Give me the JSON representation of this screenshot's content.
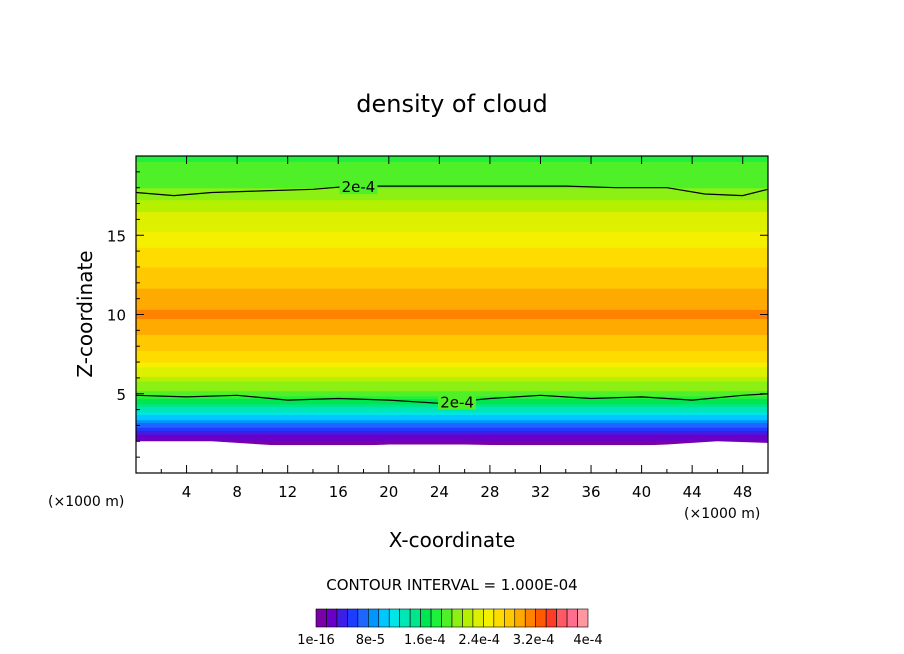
{
  "chart_data": {
    "type": "heatmap",
    "title": "density of cloud",
    "xlabel": "X-coordinate",
    "ylabel": "Z-coordinate",
    "x_unit_left": "(×1000 m)",
    "x_unit_right": "(×1000 m)",
    "xlim": [
      0,
      50
    ],
    "ylim": [
      0,
      20
    ],
    "xticks": [
      4,
      8,
      12,
      16,
      20,
      24,
      28,
      32,
      36,
      40,
      44,
      48
    ],
    "yticks": [
      5,
      10,
      15
    ],
    "grid": false,
    "contour_interval_text": "CONTOUR INTERVAL = 1.000E-04",
    "contour_labels": [
      "2e-4",
      "2e-4"
    ],
    "contour_2e4_upper_z": [
      [
        0,
        17.7
      ],
      [
        3,
        17.5
      ],
      [
        6,
        17.7
      ],
      [
        10,
        17.8
      ],
      [
        14,
        17.9
      ],
      [
        17,
        18.1
      ],
      [
        22,
        18.1
      ],
      [
        26,
        18.1
      ],
      [
        30,
        18.1
      ],
      [
        34,
        18.1
      ],
      [
        38,
        18.0
      ],
      [
        42,
        18.0
      ],
      [
        45,
        17.6
      ],
      [
        48,
        17.5
      ],
      [
        50,
        17.9
      ]
    ],
    "contour_2e4_lower_z": [
      [
        0,
        4.9
      ],
      [
        4,
        4.8
      ],
      [
        8,
        4.9
      ],
      [
        12,
        4.6
      ],
      [
        16,
        4.7
      ],
      [
        20,
        4.6
      ],
      [
        24,
        4.4
      ],
      [
        28,
        4.7
      ],
      [
        32,
        4.9
      ],
      [
        36,
        4.7
      ],
      [
        40,
        4.8
      ],
      [
        44,
        4.6
      ],
      [
        48,
        4.9
      ],
      [
        50,
        5.0
      ]
    ],
    "cloud_base_z": [
      [
        0,
        2.0
      ],
      [
        6,
        2.0
      ],
      [
        10,
        1.8
      ],
      [
        14,
        1.6
      ],
      [
        20,
        1.8
      ],
      [
        26,
        1.8
      ],
      [
        32,
        1.7
      ],
      [
        36,
        1.6
      ],
      [
        42,
        1.8
      ],
      [
        46,
        2.0
      ],
      [
        50,
        1.9
      ]
    ],
    "density_levels": [
      {
        "z": 1.8,
        "value": 1e-16
      },
      {
        "z": 2.6,
        "value": 4e-05
      },
      {
        "z": 3.2,
        "value": 8e-05
      },
      {
        "z": 4.2,
        "value": 0.00014
      },
      {
        "z": 5.2,
        "value": 0.0002
      },
      {
        "z": 7.0,
        "value": 0.00026
      },
      {
        "z": 8.5,
        "value": 0.00029
      },
      {
        "z": 10.0,
        "value": 0.00031
      },
      {
        "z": 12.0,
        "value": 0.00029
      },
      {
        "z": 13.5,
        "value": 0.00027
      },
      {
        "z": 15.0,
        "value": 0.00025
      },
      {
        "z": 16.5,
        "value": 0.00023
      },
      {
        "z": 18.0,
        "value": 0.0002
      },
      {
        "z": 20.0,
        "value": 0.00018
      }
    ],
    "colorbar": {
      "min": 1e-16,
      "max": 0.0004,
      "labels": [
        "1e-16",
        "8e-5",
        "1.6e-4",
        "2.4e-4",
        "3.2e-4",
        "4e-4"
      ],
      "colors": [
        "#7a00a8",
        "#6a00c8",
        "#3c1ee6",
        "#1e3cff",
        "#1e66ff",
        "#0096ff",
        "#00c8ff",
        "#00e6e6",
        "#00e6b4",
        "#00e68c",
        "#00e650",
        "#1ef03c",
        "#50f028",
        "#8cf014",
        "#b4f000",
        "#dcf000",
        "#f5f000",
        "#ffdc00",
        "#ffc800",
        "#ffaa00",
        "#ff8200",
        "#ff5a00",
        "#ff3c28",
        "#ff5a64",
        "#ff6e8c",
        "#ff96a0"
      ]
    }
  }
}
